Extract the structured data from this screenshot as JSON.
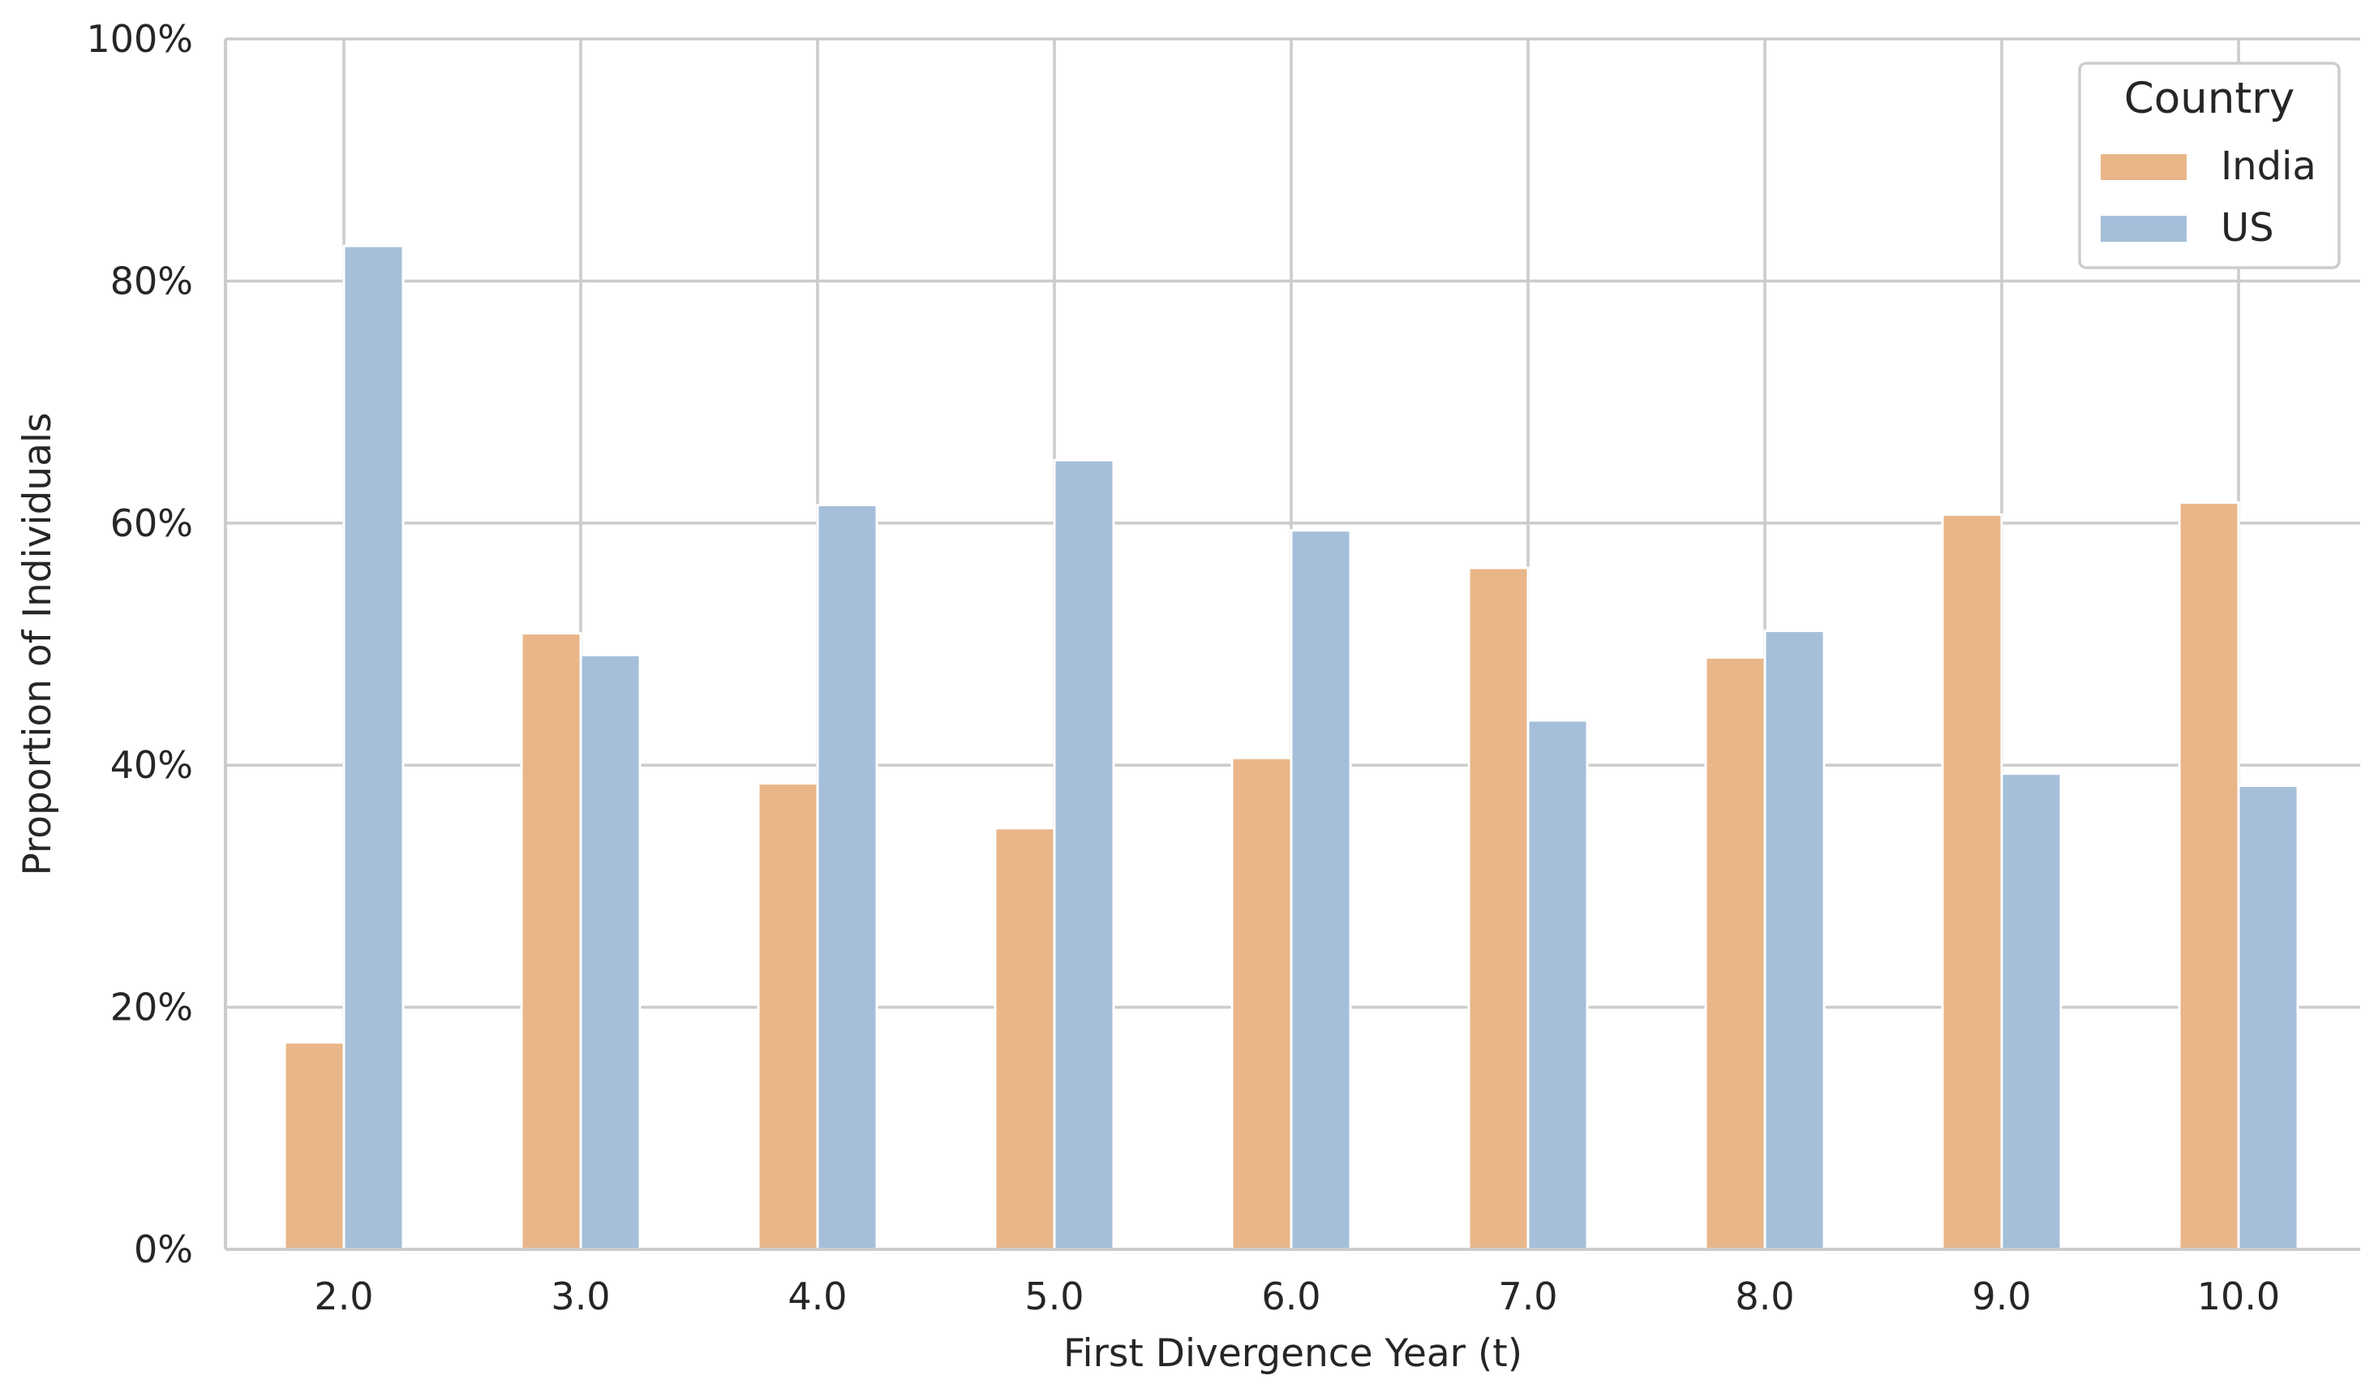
{
  "chart_data": {
    "type": "bar",
    "xlabel": "First Divergence Year (t)",
    "ylabel": "Proportion of Individuals",
    "categories": [
      "2.0",
      "3.0",
      "4.0",
      "5.0",
      "6.0",
      "7.0",
      "8.0",
      "9.0",
      "10.0"
    ],
    "ylim": [
      0,
      100
    ],
    "y_ticks": [
      "0%",
      "20%",
      "40%",
      "60%",
      "80%",
      "100%"
    ],
    "y_tick_values": [
      0,
      20,
      40,
      60,
      80,
      100
    ],
    "grid": true,
    "legend": {
      "title": "Country",
      "placement": "top-right"
    },
    "series": [
      {
        "name": "India",
        "color": "#e8b689",
        "values": [
          17.1,
          50.9,
          38.5,
          34.8,
          40.6,
          56.3,
          48.9,
          60.7,
          61.7
        ]
      },
      {
        "name": "US",
        "color": "#a5bfda",
        "values": [
          82.9,
          49.1,
          61.5,
          65.2,
          59.4,
          43.7,
          51.1,
          39.3,
          38.3
        ]
      }
    ]
  }
}
